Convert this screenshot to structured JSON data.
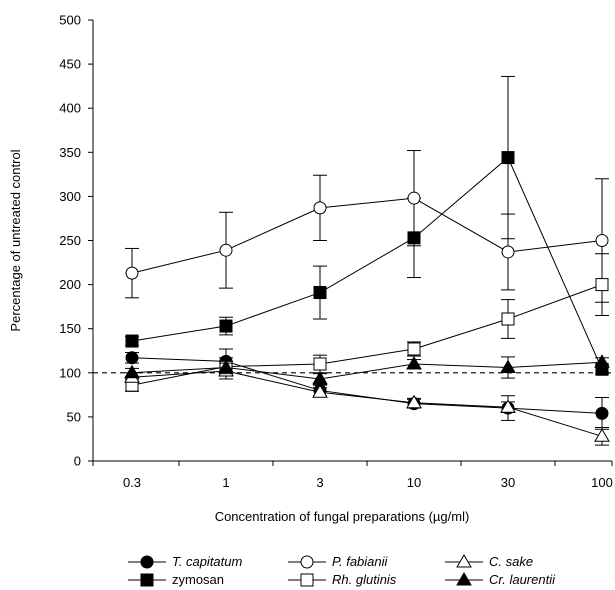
{
  "chart_data": {
    "type": "line",
    "xlabel": "Concentration of fungal preparations (µg/ml)",
    "ylabel": "Percentage of untreated control",
    "categories": [
      "0.3",
      "1",
      "3",
      "10",
      "30",
      "100"
    ],
    "ylim": [
      0,
      500
    ],
    "yticks": [
      0,
      50,
      100,
      150,
      200,
      250,
      300,
      350,
      400,
      450,
      500
    ],
    "reference_line": 100,
    "grid": false,
    "legend_position": "bottom",
    "series": [
      {
        "name": "T. capitatum",
        "marker": "circle",
        "fill": "#000000",
        "italic": true,
        "values": [
          117,
          113,
          80,
          65,
          60,
          54
        ],
        "errors": [
          6,
          14,
          6,
          5,
          14,
          18
        ]
      },
      {
        "name": "zymosan",
        "marker": "square",
        "fill": "#000000",
        "italic": false,
        "values": [
          136,
          153,
          191,
          253,
          344,
          104
        ],
        "errors": [
          5,
          10,
          30,
          45,
          92,
          5
        ]
      },
      {
        "name": "P. fabianii",
        "marker": "circle",
        "fill": "#ffffff",
        "italic": true,
        "values": [
          213,
          239,
          287,
          298,
          237,
          250
        ],
        "errors": [
          28,
          43,
          37,
          54,
          43,
          70
        ]
      },
      {
        "name": "Rh. glutinis",
        "marker": "square",
        "fill": "#ffffff",
        "italic": true,
        "values": [
          86,
          107,
          110,
          127,
          161,
          200
        ],
        "errors": [
          7,
          10,
          10,
          8,
          22,
          35
        ]
      },
      {
        "name": "C. sake",
        "marker": "triangle-up",
        "fill": "#ffffff",
        "italic": true,
        "values": [
          95,
          102,
          78,
          66,
          61,
          28
        ],
        "errors": [
          5,
          9,
          5,
          5,
          6,
          10
        ]
      },
      {
        "name": "Cr. laurentii",
        "marker": "triangle-up",
        "fill": "#000000",
        "italic": true,
        "values": [
          100,
          106,
          93,
          110,
          106,
          112
        ],
        "errors": [
          5,
          7,
          6,
          5,
          12,
          5
        ]
      }
    ]
  }
}
